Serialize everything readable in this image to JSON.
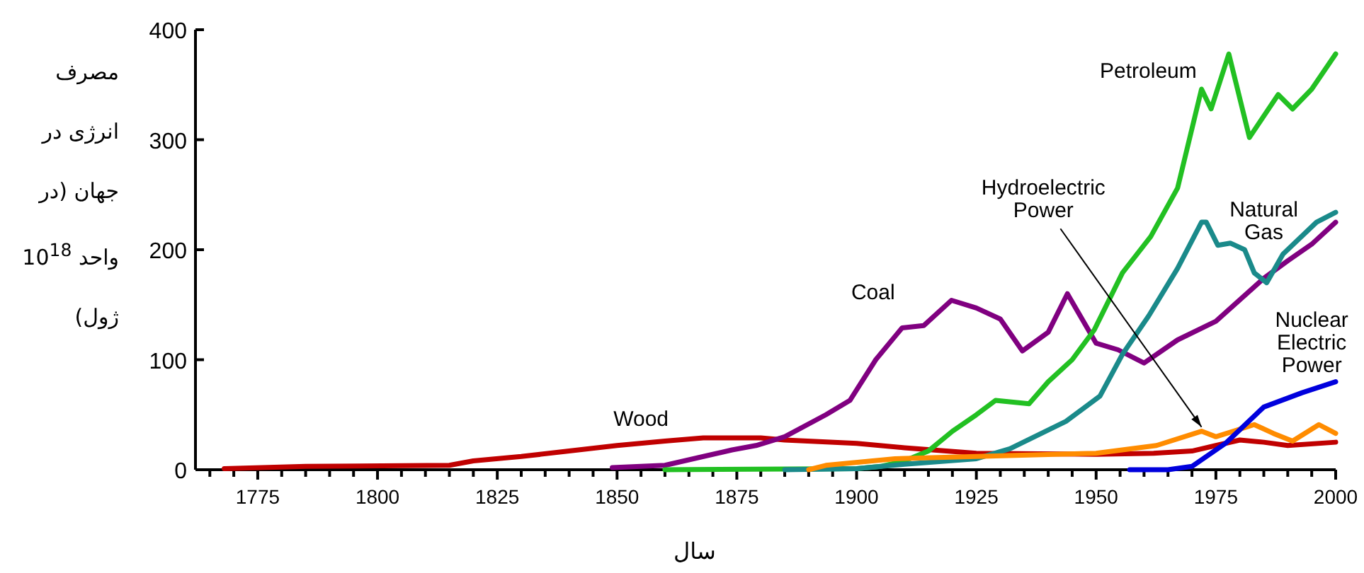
{
  "chart_data": {
    "type": "line",
    "ylabel": "مصرف انرژی در جهان (در واحد 10$^{18}$ ژول)",
    "xlabel": "سال",
    "xlim": [
      1762,
      2000
    ],
    "ylim": [
      0,
      400
    ],
    "yticks": [
      0,
      100,
      200,
      300,
      400
    ],
    "xticks": [
      {
        "value": 1765,
        "label": null
      },
      {
        "value": 1770,
        "label": null
      },
      1775,
      {
        "value": 1780,
        "label": null
      },
      {
        "value": 1785,
        "label": null
      },
      {
        "value": 1790,
        "label": null
      },
      {
        "value": 1795,
        "label": null
      },
      1800,
      {
        "value": 1805,
        "label": null
      },
      {
        "value": 1810,
        "label": null
      },
      {
        "value": 1815,
        "label": null
      },
      {
        "value": 1820,
        "label": null
      },
      1825,
      {
        "value": 1830,
        "label": null
      },
      {
        "value": 1835,
        "label": null
      },
      {
        "value": 1840,
        "label": null
      },
      {
        "value": 1845,
        "label": null
      },
      1850,
      {
        "value": 1855,
        "label": null
      },
      {
        "value": 1860,
        "label": null
      },
      {
        "value": 1865,
        "label": null
      },
      {
        "value": 1870,
        "label": null
      },
      1875,
      {
        "value": 1880,
        "label": null
      },
      {
        "value": 1885,
        "label": null
      },
      {
        "value": 1890,
        "label": null
      },
      {
        "value": 1895,
        "label": null
      },
      1900,
      {
        "value": 1905,
        "label": null
      },
      {
        "value": 1910,
        "label": null
      },
      {
        "value": 1915,
        "label": null
      },
      {
        "value": 1920,
        "label": null
      },
      1925,
      {
        "value": 1930,
        "label": null
      },
      {
        "value": 1935,
        "label": null
      },
      {
        "value": 1940,
        "label": null
      },
      {
        "value": 1945,
        "label": null
      },
      1950,
      {
        "value": 1955,
        "label": null
      },
      {
        "value": 1960,
        "label": null
      },
      {
        "value": 1965,
        "label": null
      },
      {
        "value": 1970,
        "label": null
      },
      1975,
      {
        "value": 1980,
        "label": null
      },
      {
        "value": 1985,
        "label": null
      },
      {
        "value": 1990,
        "label": null
      },
      {
        "value": 1995,
        "label": null
      },
      2000
    ],
    "grid": false,
    "marker": "none",
    "line_style": "solid",
    "series": [
      {
        "name": "Wood",
        "color": "#c00000",
        "x": [
          1768,
          1785,
          1815,
          1820,
          1830,
          1840,
          1850,
          1860,
          1868,
          1880,
          1885,
          1900,
          1910,
          1925,
          1950,
          1962,
          1970,
          1975,
          1980,
          1985,
          1990,
          2000
        ],
        "values": [
          1,
          3,
          4,
          8,
          12,
          17,
          22,
          26,
          29,
          29,
          27,
          24,
          20,
          15,
          14,
          15,
          17,
          22,
          27,
          25,
          22,
          25
        ]
      },
      {
        "name": "Coal",
        "color": "#800080",
        "x": [
          1849,
          1860,
          1869,
          1874,
          1879,
          1885,
          1893.6,
          1898.6,
          1904,
          1909.5,
          1914,
          1919.8,
          1925,
          1930,
          1934.6,
          1940,
          1944,
          1950,
          1954.6,
          1960,
          1967,
          1975,
          1985,
          1990,
          1995,
          2000
        ],
        "values": [
          2,
          4,
          13,
          18,
          22,
          30,
          50,
          63,
          100,
          129,
          131,
          154,
          147,
          137,
          108,
          125,
          160,
          115,
          109,
          97,
          118,
          135,
          174,
          190,
          205,
          225
        ]
      },
      {
        "name": "Petroleum",
        "color": "#22c022",
        "x": [
          1860,
          1900,
          1905,
          1910,
          1915,
          1920,
          1925,
          1929,
          1936,
          1940,
          1945,
          1949.6,
          1955.5,
          1961.4,
          1967,
          1972,
          1974,
          1977.7,
          1982,
          1988,
          1991,
          1995,
          2000
        ],
        "values": [
          0,
          1,
          3,
          8,
          17,
          35,
          50,
          63,
          60,
          80,
          100,
          127,
          179,
          212,
          256,
          346,
          328,
          378,
          302,
          341,
          328,
          346,
          378
        ]
      },
      {
        "name": "Natural Gas",
        "color": "#1a8a8a",
        "x": [
          1885,
          1900,
          1910,
          1925,
          1932,
          1943.7,
          1950.8,
          1955.5,
          1961,
          1967,
          1972,
          1973,
          1975.4,
          1978,
          1981,
          1983,
          1985.6,
          1989,
          1996,
          2000
        ],
        "values": [
          0,
          1,
          5,
          10,
          19,
          44,
          67,
          105,
          140,
          183,
          225,
          225,
          204,
          206,
          200,
          179,
          170,
          196,
          225,
          234
        ]
      },
      {
        "name": "Hydroelectric Power",
        "color": "#ff8c00",
        "x": [
          1890,
          1893.6,
          1908,
          1925,
          1950,
          1962.6,
          1972,
          1975,
          1983,
          1987,
          1991,
          1996.5,
          2000
        ],
        "values": [
          0,
          4,
          10,
          12,
          15,
          22,
          35,
          30,
          41,
          33,
          26,
          41,
          33
        ]
      },
      {
        "name": "Nuclear Electric Power",
        "color": "#0000dd",
        "x": [
          1957,
          1965,
          1970,
          1977,
          1985,
          1993,
          2000
        ],
        "values": [
          0,
          0,
          3,
          24,
          57,
          70,
          80
        ]
      }
    ]
  }
}
